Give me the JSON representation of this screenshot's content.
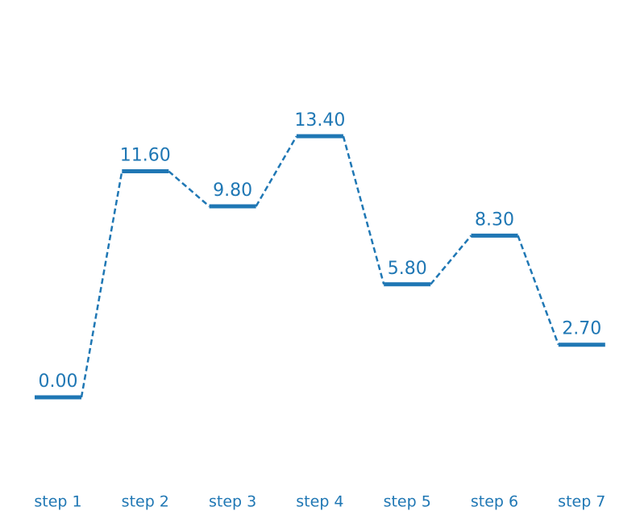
{
  "chart_data": {
    "type": "line",
    "subtype": "energy-level-diagram",
    "categories": [
      "step 1",
      "step 2",
      "step 3",
      "step 4",
      "step 5",
      "step 6",
      "step 7"
    ],
    "values": [
      0.0,
      11.6,
      9.8,
      13.4,
      5.8,
      8.3,
      2.7
    ],
    "value_labels": [
      "0.00",
      "11.60",
      "9.80",
      "13.40",
      "5.80",
      "8.30",
      "2.70"
    ],
    "title": "",
    "xlabel": "",
    "ylabel": "",
    "grid": false,
    "axes_visible": false,
    "connector_style": "dashed",
    "color": "#1f77b4"
  }
}
